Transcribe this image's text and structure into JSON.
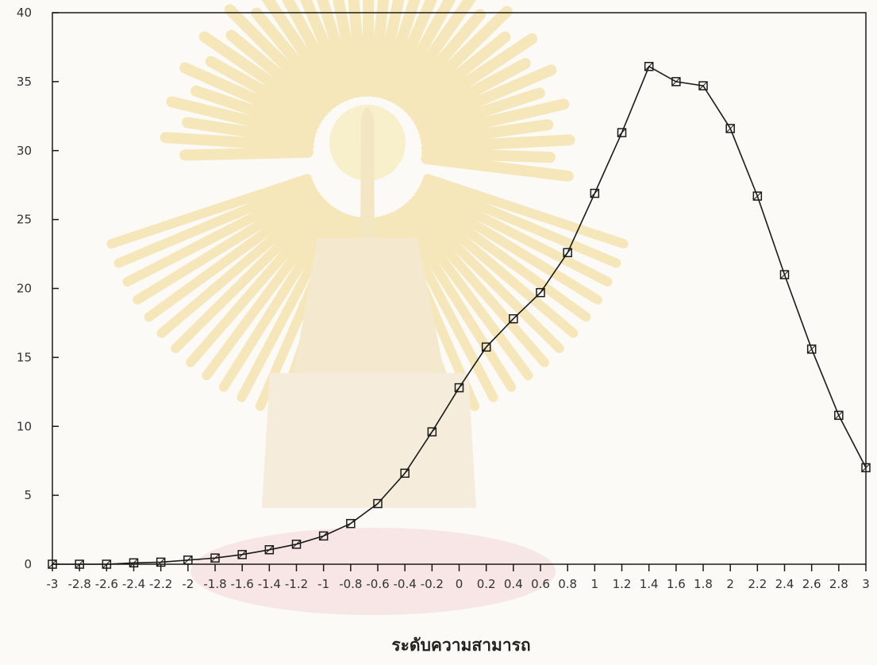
{
  "chart_data": {
    "type": "line",
    "title": "",
    "xlabel": "ระดับความสามารถ",
    "ylabel": "",
    "xlim": [
      -3,
      3
    ],
    "ylim": [
      0,
      40
    ],
    "grid": false,
    "yticks": [
      0,
      5,
      10,
      15,
      20,
      25,
      30,
      35,
      40
    ],
    "xtick_labels": [
      "-3",
      "-2.8",
      "-2.6",
      "-2.4",
      "-2.2",
      "-2",
      "-1.8",
      "-1.6",
      "-1.4",
      "-1.2",
      "-1",
      "-0.8",
      "-0.6",
      "-0.4",
      "-0.2",
      "0",
      "0.2",
      "0.4",
      "0.6",
      "0.8",
      "1",
      "1.2",
      "1.4",
      "1.6",
      "1.8",
      "2",
      "2.2",
      "2.4",
      "2.6",
      "2.8",
      "3"
    ],
    "marker": "square",
    "colors": {
      "line": "#1a1a1a",
      "axis": "#1a1a1a",
      "watermark": "#f1d98a"
    },
    "x": [
      -3,
      -2.8,
      -2.6,
      -2.4,
      -2.2,
      -2,
      -1.8,
      -1.6,
      -1.4,
      -1.2,
      -1,
      -0.8,
      -0.6,
      -0.4,
      -0.2,
      0,
      0.2,
      0.4,
      0.6,
      0.8,
      1,
      1.2,
      1.4,
      1.6,
      1.8,
      2,
      2.2,
      2.4,
      2.6,
      2.8,
      3
    ],
    "series": [
      {
        "values": [
          0,
          0,
          0,
          0.1,
          0.15,
          0.3,
          0.45,
          0.7,
          1.05,
          1.45,
          2.05,
          2.95,
          4.4,
          6.6,
          9.6,
          12.8,
          15.75,
          17.8,
          19.7,
          22.6,
          26.9,
          31.3,
          36.1,
          35.0,
          34.7,
          31.6,
          26.7,
          21.0,
          15.6,
          10.8,
          7.0
        ]
      }
    ]
  }
}
